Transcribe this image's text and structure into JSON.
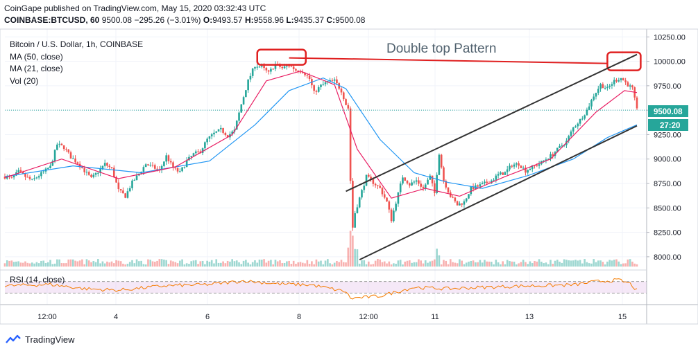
{
  "header": {
    "line1": "CoinGape published on TradingView.com, May 15, 2020 03:32:43 UTC",
    "symbol": "COINBASE:BTCUSD, 60",
    "last": "9500.08",
    "change": "−295.26 (−3.01%)",
    "o_label": "O:",
    "o_value": "9493.57",
    "h_label": "H:",
    "h_value": "9558.96",
    "l_label": "L:",
    "l_value": "9435.37",
    "c_label": "C:",
    "c_value": "9500.08"
  },
  "legend": {
    "title": "Bitcoin / U.S. Dollar, 1h, COINBASE",
    "ma50": "MA (50, close)",
    "ma21": "MA (21, close)",
    "vol": "Vol (20)",
    "rsi": "RSI (14, close)"
  },
  "annotation": "Double top Pattern",
  "price_tag": "9500.08",
  "countdown_tag": "27:20",
  "brand": "TradingView",
  "colors": {
    "up": "#26a69a",
    "down": "#ef5350",
    "ma50": "#2196f3",
    "ma21": "#e91e63",
    "rsi": "#f57c00",
    "rsi_band": "#e1bee7",
    "annotation_box": "#e02020",
    "trendline": "#333333"
  },
  "chart_data": {
    "type": "candlestick",
    "title": "Bitcoin / U.S. Dollar, 1h, COINBASE",
    "x_tick_labels": [
      "12:00",
      "4",
      "6",
      "8",
      "12:00",
      "11",
      "13",
      "15"
    ],
    "y_tick_labels": [
      8000,
      8250,
      8500,
      8750,
      9000,
      9250,
      9500,
      9750,
      10000,
      10250
    ],
    "ylim": [
      7900,
      10330
    ],
    "last_price": 9500.08,
    "price_path": [
      [
        0,
        8820
      ],
      [
        6,
        8800
      ],
      [
        12,
        8870
      ],
      [
        18,
        8820
      ],
      [
        24,
        8780
      ],
      [
        32,
        8850
      ],
      [
        40,
        8920
      ],
      [
        46,
        9150
      ],
      [
        52,
        9120
      ],
      [
        58,
        9020
      ],
      [
        64,
        8960
      ],
      [
        70,
        8880
      ],
      [
        76,
        8800
      ],
      [
        82,
        8870
      ],
      [
        88,
        8950
      ],
      [
        94,
        8900
      ],
      [
        100,
        8680
      ],
      [
        106,
        8620
      ],
      [
        112,
        8760
      ],
      [
        118,
        8850
      ],
      [
        124,
        8950
      ],
      [
        130,
        8920
      ],
      [
        136,
        8880
      ],
      [
        142,
        9030
      ],
      [
        148,
        8910
      ],
      [
        154,
        8860
      ],
      [
        160,
        8980
      ],
      [
        166,
        9050
      ],
      [
        172,
        9080
      ],
      [
        178,
        9200
      ],
      [
        184,
        9260
      ],
      [
        190,
        9300
      ],
      [
        196,
        9240
      ],
      [
        202,
        9290
      ],
      [
        208,
        9560
      ],
      [
        214,
        9800
      ],
      [
        220,
        9960
      ],
      [
        226,
        9940
      ],
      [
        232,
        9880
      ],
      [
        238,
        9970
      ],
      [
        244,
        9930
      ],
      [
        250,
        9960
      ],
      [
        256,
        9910
      ],
      [
        262,
        9900
      ],
      [
        268,
        9820
      ],
      [
        272,
        9680
      ],
      [
        278,
        9750
      ],
      [
        284,
        9790
      ],
      [
        290,
        9800
      ],
      [
        296,
        9700
      ],
      [
        300,
        9560
      ],
      [
        302,
        9520
      ],
      [
        304,
        8780
      ],
      [
        306,
        8300
      ],
      [
        308,
        8450
      ],
      [
        312,
        8600
      ],
      [
        318,
        8820
      ],
      [
        324,
        8760
      ],
      [
        330,
        8700
      ],
      [
        336,
        8560
      ],
      [
        340,
        8380
      ],
      [
        344,
        8560
      ],
      [
        350,
        8820
      ],
      [
        356,
        8740
      ],
      [
        362,
        8780
      ],
      [
        368,
        8700
      ],
      [
        374,
        8820
      ],
      [
        378,
        8650
      ],
      [
        382,
        9060
      ],
      [
        386,
        8780
      ],
      [
        392,
        8620
      ],
      [
        398,
        8530
      ],
      [
        404,
        8560
      ],
      [
        410,
        8700
      ],
      [
        416,
        8720
      ],
      [
        422,
        8750
      ],
      [
        428,
        8780
      ],
      [
        434,
        8840
      ],
      [
        440,
        8860
      ],
      [
        446,
        8940
      ],
      [
        452,
        8950
      ],
      [
        458,
        8880
      ],
      [
        464,
        8920
      ],
      [
        470,
        8950
      ],
      [
        476,
        9000
      ],
      [
        482,
        9050
      ],
      [
        488,
        9120
      ],
      [
        494,
        9180
      ],
      [
        500,
        9320
      ],
      [
        506,
        9400
      ],
      [
        512,
        9500
      ],
      [
        518,
        9650
      ],
      [
        524,
        9760
      ],
      [
        530,
        9720
      ],
      [
        536,
        9800
      ],
      [
        542,
        9830
      ],
      [
        548,
        9760
      ],
      [
        552,
        9720
      ],
      [
        556,
        9500
      ]
    ],
    "ma50_path": [
      [
        0,
        8820
      ],
      [
        60,
        8930
      ],
      [
        120,
        8860
      ],
      [
        180,
        8980
      ],
      [
        220,
        9350
      ],
      [
        250,
        9700
      ],
      [
        280,
        9830
      ],
      [
        300,
        9720
      ],
      [
        330,
        9200
      ],
      [
        360,
        8860
      ],
      [
        390,
        8760
      ],
      [
        420,
        8700
      ],
      [
        460,
        8830
      ],
      [
        500,
        9000
      ],
      [
        530,
        9220
      ],
      [
        556,
        9350
      ]
    ],
    "ma21_path": [
      [
        0,
        8810
      ],
      [
        50,
        9000
      ],
      [
        100,
        8800
      ],
      [
        150,
        8920
      ],
      [
        200,
        9250
      ],
      [
        230,
        9800
      ],
      [
        260,
        9900
      ],
      [
        290,
        9760
      ],
      [
        310,
        9100
      ],
      [
        340,
        8600
      ],
      [
        370,
        8700
      ],
      [
        400,
        8620
      ],
      [
        440,
        8820
      ],
      [
        480,
        9000
      ],
      [
        520,
        9480
      ],
      [
        545,
        9700
      ],
      [
        556,
        9680
      ]
    ],
    "rsi_path": [
      [
        0,
        55
      ],
      [
        40,
        60
      ],
      [
        70,
        45
      ],
      [
        100,
        40
      ],
      [
        140,
        55
      ],
      [
        180,
        60
      ],
      [
        210,
        72
      ],
      [
        240,
        62
      ],
      [
        270,
        58
      ],
      [
        300,
        35
      ],
      [
        304,
        12
      ],
      [
        330,
        20
      ],
      [
        360,
        50
      ],
      [
        390,
        45
      ],
      [
        420,
        50
      ],
      [
        460,
        55
      ],
      [
        500,
        58
      ],
      [
        520,
        70
      ],
      [
        540,
        75
      ],
      [
        550,
        62
      ],
      [
        556,
        40
      ]
    ],
    "rsi_band": [
      30,
      70
    ],
    "double_top_level": 10000,
    "channel": {
      "upper": [
        [
          300,
          8670
        ],
        [
          556,
          10070
        ]
      ],
      "lower": [
        [
          312,
          7970
        ],
        [
          556,
          9340
        ]
      ]
    }
  }
}
